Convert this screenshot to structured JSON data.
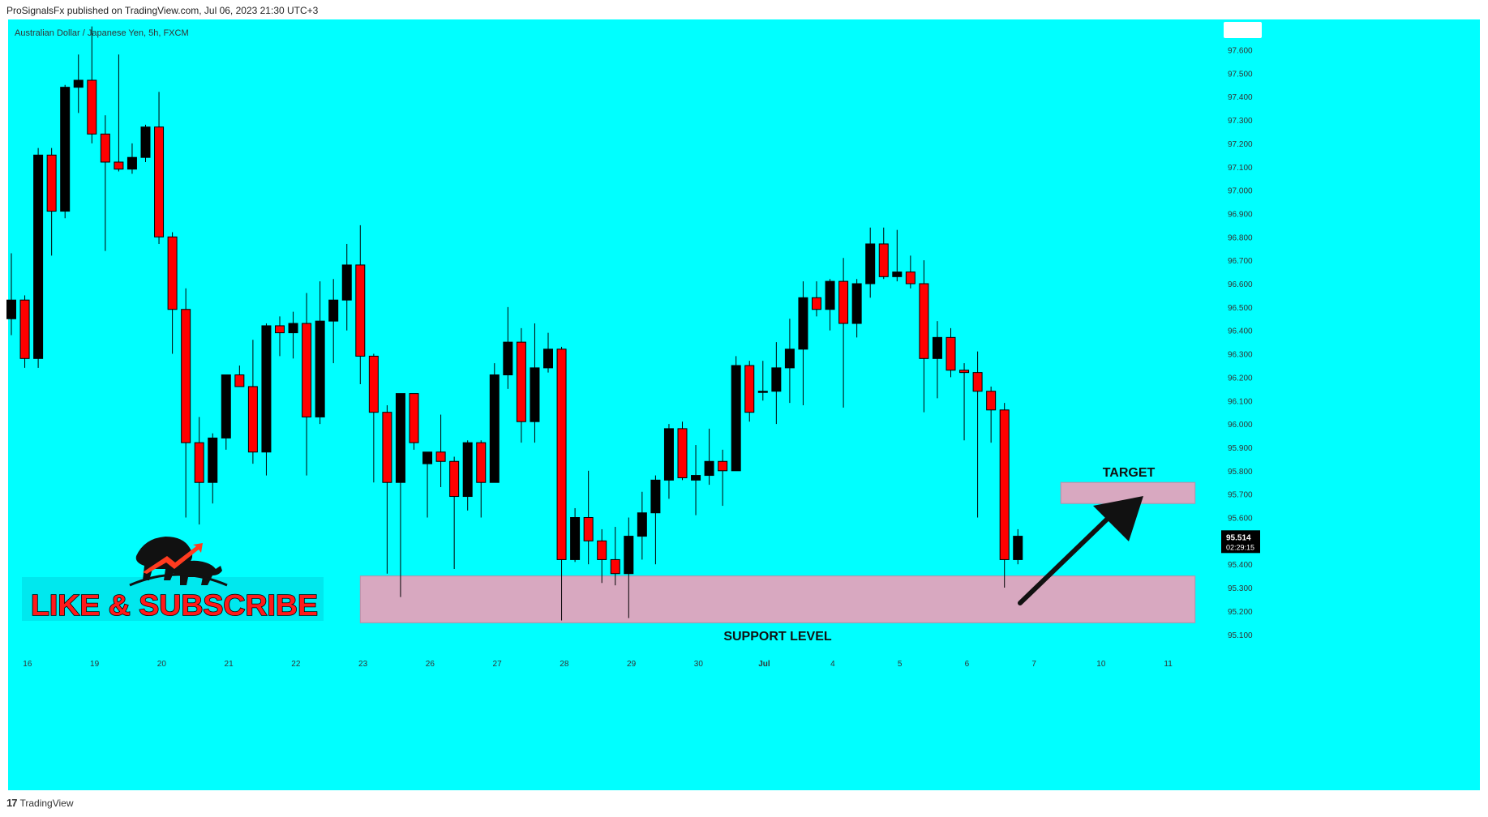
{
  "header": {
    "published": "ProSignalsFx published on TradingView.com, Jul 06, 2023 21:30 UTC+3"
  },
  "symbol_info": "Australian Dollar / Japanese Yen, 5h, FXCM",
  "footer": {
    "logo": "17",
    "brand": "TradingView"
  },
  "annotations": {
    "target_label": "TARGET",
    "support_label": "SUPPORT LEVEL",
    "promo_text": "LIKE & SUBSCRIBE"
  },
  "price_tag": {
    "price": "95.514",
    "countdown": "02:29:15"
  },
  "colors": {
    "background": "#00ffff",
    "up_candle": "#000000",
    "down_candle": "#ff0000",
    "zone": "#d8a8c0",
    "arrow": "#111111"
  },
  "chart_data": {
    "type": "candlestick",
    "title": "Australian Dollar / Japanese Yen, 5h, FXCM",
    "ylim": [
      95.1,
      97.6
    ],
    "y_ticks": [
      "97.600",
      "97.500",
      "97.400",
      "97.300",
      "97.200",
      "97.100",
      "97.000",
      "96.900",
      "96.800",
      "96.700",
      "96.600",
      "96.500",
      "96.400",
      "96.300",
      "96.200",
      "96.100",
      "96.000",
      "95.900",
      "95.800",
      "95.700",
      "95.600",
      "95.500",
      "95.400",
      "95.300",
      "95.200",
      "95.100"
    ],
    "x_ticks": [
      {
        "label": "16",
        "i": 1.2
      },
      {
        "label": "19",
        "i": 6.2
      },
      {
        "label": "20",
        "i": 11.2
      },
      {
        "label": "21",
        "i": 16.2
      },
      {
        "label": "22",
        "i": 21.2
      },
      {
        "label": "23",
        "i": 26.2
      },
      {
        "label": "26",
        "i": 31.2
      },
      {
        "label": "27",
        "i": 36.2
      },
      {
        "label": "28",
        "i": 41.2
      },
      {
        "label": "29",
        "i": 46.2
      },
      {
        "label": "30",
        "i": 51.2
      },
      {
        "label": "Jul",
        "i": 56.1
      },
      {
        "label": "4",
        "i": 61.2
      },
      {
        "label": "5",
        "i": 66.2
      },
      {
        "label": "6",
        "i": 71.2
      },
      {
        "label": "7",
        "i": 76.2
      },
      {
        "label": "10",
        "i": 81.2
      },
      {
        "label": "11",
        "i": 86.2
      }
    ],
    "candles": [
      {
        "o": 96.45,
        "h": 96.73,
        "l": 96.38,
        "c": 96.53
      },
      {
        "o": 96.53,
        "h": 96.55,
        "l": 96.24,
        "c": 96.28
      },
      {
        "o": 96.28,
        "h": 97.18,
        "l": 96.24,
        "c": 97.15
      },
      {
        "o": 97.15,
        "h": 97.18,
        "l": 96.72,
        "c": 96.91
      },
      {
        "o": 96.91,
        "h": 97.45,
        "l": 96.88,
        "c": 97.44
      },
      {
        "o": 97.44,
        "h": 97.58,
        "l": 97.33,
        "c": 97.47
      },
      {
        "o": 97.47,
        "h": 97.7,
        "l": 97.2,
        "c": 97.24
      },
      {
        "o": 97.24,
        "h": 97.32,
        "l": 96.74,
        "c": 97.12
      },
      {
        "o": 97.12,
        "h": 97.58,
        "l": 97.08,
        "c": 97.09
      },
      {
        "o": 97.09,
        "h": 97.2,
        "l": 97.07,
        "c": 97.14
      },
      {
        "o": 97.14,
        "h": 97.28,
        "l": 97.12,
        "c": 97.27
      },
      {
        "o": 97.27,
        "h": 97.42,
        "l": 96.77,
        "c": 96.8
      },
      {
        "o": 96.8,
        "h": 96.82,
        "l": 96.3,
        "c": 96.49
      },
      {
        "o": 96.49,
        "h": 96.58,
        "l": 95.6,
        "c": 95.92
      },
      {
        "o": 95.92,
        "h": 96.03,
        "l": 95.57,
        "c": 95.75
      },
      {
        "o": 95.75,
        "h": 95.96,
        "l": 95.66,
        "c": 95.94
      },
      {
        "o": 95.94,
        "h": 96.21,
        "l": 95.89,
        "c": 96.21
      },
      {
        "o": 96.21,
        "h": 96.25,
        "l": 96.16,
        "c": 96.16
      },
      {
        "o": 96.16,
        "h": 96.36,
        "l": 95.83,
        "c": 95.88
      },
      {
        "o": 95.88,
        "h": 96.43,
        "l": 95.78,
        "c": 96.42
      },
      {
        "o": 96.42,
        "h": 96.46,
        "l": 96.29,
        "c": 96.39
      },
      {
        "o": 96.39,
        "h": 96.48,
        "l": 96.28,
        "c": 96.43
      },
      {
        "o": 96.43,
        "h": 96.56,
        "l": 95.78,
        "c": 96.03
      },
      {
        "o": 96.03,
        "h": 96.61,
        "l": 96.0,
        "c": 96.44
      },
      {
        "o": 96.44,
        "h": 96.62,
        "l": 96.26,
        "c": 96.53
      },
      {
        "o": 96.53,
        "h": 96.77,
        "l": 96.4,
        "c": 96.68
      },
      {
        "o": 96.68,
        "h": 96.85,
        "l": 96.17,
        "c": 96.29
      },
      {
        "o": 96.29,
        "h": 96.3,
        "l": 95.75,
        "c": 96.05
      },
      {
        "o": 96.05,
        "h": 96.08,
        "l": 95.36,
        "c": 95.75
      },
      {
        "o": 95.75,
        "h": 96.13,
        "l": 95.26,
        "c": 96.13
      },
      {
        "o": 96.13,
        "h": 96.13,
        "l": 95.89,
        "c": 95.92
      },
      {
        "o": 95.83,
        "h": 95.87,
        "l": 95.6,
        "c": 95.88
      },
      {
        "o": 95.88,
        "h": 96.04,
        "l": 95.73,
        "c": 95.84
      },
      {
        "o": 95.84,
        "h": 95.86,
        "l": 95.38,
        "c": 95.69
      },
      {
        "o": 95.69,
        "h": 95.93,
        "l": 95.63,
        "c": 95.92
      },
      {
        "o": 95.92,
        "h": 95.93,
        "l": 95.6,
        "c": 95.75
      },
      {
        "o": 95.75,
        "h": 96.26,
        "l": 95.75,
        "c": 96.21
      },
      {
        "o": 96.21,
        "h": 96.5,
        "l": 96.15,
        "c": 96.35
      },
      {
        "o": 96.35,
        "h": 96.41,
        "l": 95.92,
        "c": 96.01
      },
      {
        "o": 96.01,
        "h": 96.43,
        "l": 95.92,
        "c": 96.24
      },
      {
        "o": 96.24,
        "h": 96.39,
        "l": 96.22,
        "c": 96.32
      },
      {
        "o": 96.32,
        "h": 96.33,
        "l": 95.16,
        "c": 95.42
      },
      {
        "o": 95.42,
        "h": 95.64,
        "l": 95.41,
        "c": 95.6
      },
      {
        "o": 95.6,
        "h": 95.8,
        "l": 95.4,
        "c": 95.5
      },
      {
        "o": 95.5,
        "h": 95.55,
        "l": 95.32,
        "c": 95.42
      },
      {
        "o": 95.42,
        "h": 95.56,
        "l": 95.31,
        "c": 95.36
      },
      {
        "o": 95.36,
        "h": 95.6,
        "l": 95.17,
        "c": 95.52
      },
      {
        "o": 95.52,
        "h": 95.71,
        "l": 95.42,
        "c": 95.62
      },
      {
        "o": 95.62,
        "h": 95.78,
        "l": 95.4,
        "c": 95.76
      },
      {
        "o": 95.76,
        "h": 96.0,
        "l": 95.68,
        "c": 95.98
      },
      {
        "o": 95.98,
        "h": 96.01,
        "l": 95.76,
        "c": 95.77
      },
      {
        "o": 95.76,
        "h": 95.91,
        "l": 95.61,
        "c": 95.78
      },
      {
        "o": 95.78,
        "h": 95.98,
        "l": 95.74,
        "c": 95.84
      },
      {
        "o": 95.84,
        "h": 95.89,
        "l": 95.65,
        "c": 95.8
      },
      {
        "o": 95.8,
        "h": 96.29,
        "l": 95.8,
        "c": 96.25
      },
      {
        "o": 96.25,
        "h": 96.27,
        "l": 96.01,
        "c": 96.05
      },
      {
        "o": 96.14,
        "h": 96.27,
        "l": 96.1,
        "c": 96.14
      },
      {
        "o": 96.14,
        "h": 96.35,
        "l": 96.0,
        "c": 96.24
      },
      {
        "o": 96.24,
        "h": 96.45,
        "l": 96.09,
        "c": 96.32
      },
      {
        "o": 96.32,
        "h": 96.61,
        "l": 96.08,
        "c": 96.54
      },
      {
        "o": 96.54,
        "h": 96.61,
        "l": 96.46,
        "c": 96.49
      },
      {
        "o": 96.49,
        "h": 96.62,
        "l": 96.4,
        "c": 96.61
      },
      {
        "o": 96.61,
        "h": 96.71,
        "l": 96.07,
        "c": 96.43
      },
      {
        "o": 96.43,
        "h": 96.62,
        "l": 96.37,
        "c": 96.6
      },
      {
        "o": 96.6,
        "h": 96.84,
        "l": 96.54,
        "c": 96.77
      },
      {
        "o": 96.77,
        "h": 96.84,
        "l": 96.62,
        "c": 96.63
      },
      {
        "o": 96.63,
        "h": 96.83,
        "l": 96.61,
        "c": 96.65
      },
      {
        "o": 96.65,
        "h": 96.72,
        "l": 96.58,
        "c": 96.6
      },
      {
        "o": 96.6,
        "h": 96.7,
        "l": 96.05,
        "c": 96.28
      },
      {
        "o": 96.28,
        "h": 96.44,
        "l": 96.11,
        "c": 96.37
      },
      {
        "o": 96.37,
        "h": 96.41,
        "l": 96.2,
        "c": 96.23
      },
      {
        "o": 96.23,
        "h": 96.26,
        "l": 95.93,
        "c": 96.22
      },
      {
        "o": 96.22,
        "h": 96.31,
        "l": 95.6,
        "c": 96.14
      },
      {
        "o": 96.14,
        "h": 96.16,
        "l": 95.92,
        "c": 96.06
      },
      {
        "o": 96.06,
        "h": 96.09,
        "l": 95.3,
        "c": 95.42
      },
      {
        "o": 95.42,
        "h": 95.55,
        "l": 95.4,
        "c": 95.52
      }
    ],
    "zones": [
      {
        "name": "SUPPORT LEVEL",
        "y_low": 95.15,
        "y_high": 95.35,
        "i_start": 26.0,
        "i_end": 88.2
      },
      {
        "name": "TARGET",
        "y_low": 95.66,
        "y_high": 95.75,
        "i_start": 78.2,
        "i_end": 88.2
      }
    ],
    "last_price": 95.514
  }
}
